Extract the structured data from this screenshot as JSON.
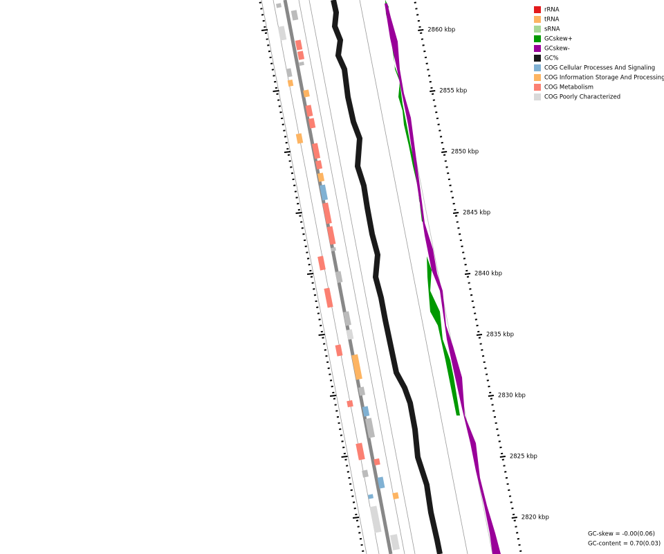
{
  "ticks": [
    {
      "label": "2860 kbp"
    },
    {
      "label": "2855 kbp"
    },
    {
      "label": "2850 kbp"
    },
    {
      "label": "2845 kbp"
    },
    {
      "label": "2840 kbp"
    },
    {
      "label": "2835 kbp"
    },
    {
      "label": "2830 kbp"
    },
    {
      "label": "2825 kbp"
    },
    {
      "label": "2820 kbp"
    }
  ],
  "legend": [
    {
      "label": "rRNA",
      "color": "#e31a1c"
    },
    {
      "label": "tRNA",
      "color": "#fdb462"
    },
    {
      "label": "sRNA",
      "color": "#a6d796"
    },
    {
      "label": "GCskew+",
      "color": "#009900"
    },
    {
      "label": "GCskew-",
      "color": "#990099"
    },
    {
      "label": "GC%",
      "color": "#1a1a1a"
    },
    {
      "label": "COG Cellular Processes And Signaling",
      "color": "#80b1d3"
    },
    {
      "label": "COG Information Storage And Processing",
      "color": "#fdb462"
    },
    {
      "label": "COG Metabolism",
      "color": "#fb8072"
    },
    {
      "label": "COG Poorly Characterized",
      "color": "#d9d9d9"
    }
  ],
  "stats": [
    "GC-skew = -0.00(0.06)",
    "GC-content = 0.70(0.03)"
  ]
}
